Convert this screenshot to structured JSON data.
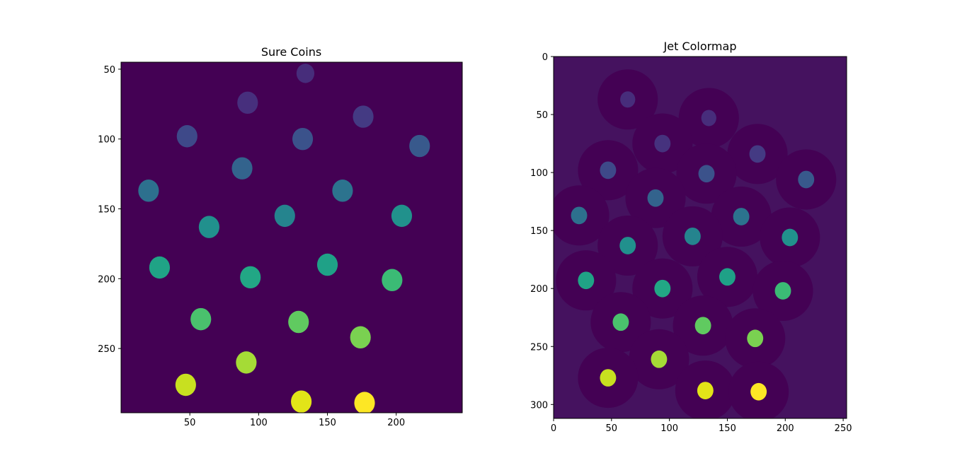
{
  "chart_data": [
    {
      "type": "heatmap",
      "title": "Sure Coins",
      "xlabel": "",
      "ylabel": "",
      "xlim": [
        0,
        248
      ],
      "ylim": [
        296,
        45
      ],
      "x_ticks": [
        50,
        100,
        150,
        200
      ],
      "y_ticks": [
        50,
        100,
        150,
        200,
        250
      ],
      "grid": false,
      "background_color": "#440154",
      "coins": [
        {
          "x": 134,
          "y": 53,
          "r": 6.5,
          "color": "#472d7b"
        },
        {
          "x": 92,
          "y": 74,
          "r": 7.5,
          "color": "#472f7d"
        },
        {
          "x": 176,
          "y": 84,
          "r": 7.5,
          "color": "#443a83"
        },
        {
          "x": 48,
          "y": 98,
          "r": 7.5,
          "color": "#3e4989"
        },
        {
          "x": 132,
          "y": 100,
          "r": 7.5,
          "color": "#3b528b"
        },
        {
          "x": 217,
          "y": 105,
          "r": 7.5,
          "color": "#38598c"
        },
        {
          "x": 88,
          "y": 121,
          "r": 7.5,
          "color": "#33638d"
        },
        {
          "x": 20,
          "y": 137,
          "r": 7.5,
          "color": "#2d708e"
        },
        {
          "x": 161,
          "y": 137,
          "r": 7.5,
          "color": "#2c738e"
        },
        {
          "x": 119,
          "y": 155,
          "r": 7.5,
          "color": "#25848e"
        },
        {
          "x": 204,
          "y": 155,
          "r": 7.5,
          "color": "#21918c"
        },
        {
          "x": 64,
          "y": 163,
          "r": 7.5,
          "color": "#21908d"
        },
        {
          "x": 28,
          "y": 192,
          "r": 7.5,
          "color": "#20a386"
        },
        {
          "x": 150,
          "y": 190,
          "r": 7.5,
          "color": "#1fa187"
        },
        {
          "x": 94,
          "y": 199,
          "r": 7.5,
          "color": "#22a785"
        },
        {
          "x": 197,
          "y": 201,
          "r": 7.5,
          "color": "#3bbb75"
        },
        {
          "x": 58,
          "y": 229,
          "r": 7.5,
          "color": "#4ac16d"
        },
        {
          "x": 129,
          "y": 231,
          "r": 7.5,
          "color": "#60ca60"
        },
        {
          "x": 174,
          "y": 242,
          "r": 7.5,
          "color": "#7ad151"
        },
        {
          "x": 91,
          "y": 260,
          "r": 7.5,
          "color": "#a5db36"
        },
        {
          "x": 47,
          "y": 276,
          "r": 7.5,
          "color": "#c8e020"
        },
        {
          "x": 131,
          "y": 288,
          "r": 7.5,
          "color": "#e2e418"
        },
        {
          "x": 177,
          "y": 289,
          "r": 7.5,
          "color": "#fde725"
        }
      ]
    },
    {
      "type": "heatmap",
      "title": "Jet Colormap",
      "xlabel": "",
      "ylabel": "",
      "xlim": [
        0,
        253
      ],
      "ylim": [
        312,
        0
      ],
      "x_ticks": [
        0,
        50,
        100,
        150,
        200,
        250
      ],
      "y_ticks": [
        0,
        50,
        100,
        150,
        200,
        250,
        300
      ],
      "grid": false,
      "background_color": "#45125f",
      "halo_color": "#440154",
      "coins": [
        {
          "x": 64,
          "y": 37,
          "r": 6.5,
          "color": "#472d7b"
        },
        {
          "x": 134,
          "y": 53,
          "r": 6.5,
          "color": "#472d7b"
        },
        {
          "x": 94,
          "y": 75,
          "r": 7,
          "color": "#46327e"
        },
        {
          "x": 176,
          "y": 84,
          "r": 7,
          "color": "#443a83"
        },
        {
          "x": 47,
          "y": 98,
          "r": 7,
          "color": "#3e4989"
        },
        {
          "x": 132,
          "y": 101,
          "r": 7,
          "color": "#3b528b"
        },
        {
          "x": 218,
          "y": 106,
          "r": 7,
          "color": "#38598c"
        },
        {
          "x": 88,
          "y": 122,
          "r": 7,
          "color": "#33638d"
        },
        {
          "x": 22,
          "y": 137,
          "r": 7,
          "color": "#2d708e"
        },
        {
          "x": 162,
          "y": 138,
          "r": 7,
          "color": "#2c738e"
        },
        {
          "x": 120,
          "y": 155,
          "r": 7,
          "color": "#25848e"
        },
        {
          "x": 204,
          "y": 156,
          "r": 7,
          "color": "#21918c"
        },
        {
          "x": 64,
          "y": 163,
          "r": 7,
          "color": "#21908d"
        },
        {
          "x": 28,
          "y": 193,
          "r": 7,
          "color": "#20a386"
        },
        {
          "x": 150,
          "y": 190,
          "r": 7,
          "color": "#1fa187"
        },
        {
          "x": 94,
          "y": 200,
          "r": 7,
          "color": "#22a785"
        },
        {
          "x": 198,
          "y": 202,
          "r": 7,
          "color": "#3bbb75"
        },
        {
          "x": 58,
          "y": 229,
          "r": 7,
          "color": "#4ac16d"
        },
        {
          "x": 129,
          "y": 232,
          "r": 7,
          "color": "#60ca60"
        },
        {
          "x": 174,
          "y": 243,
          "r": 7,
          "color": "#7ad151"
        },
        {
          "x": 91,
          "y": 261,
          "r": 7,
          "color": "#a5db36"
        },
        {
          "x": 47,
          "y": 277,
          "r": 7,
          "color": "#c8e020"
        },
        {
          "x": 131,
          "y": 288,
          "r": 7,
          "color": "#e2e418"
        },
        {
          "x": 177,
          "y": 289,
          "r": 7,
          "color": "#fde725"
        }
      ]
    }
  ]
}
